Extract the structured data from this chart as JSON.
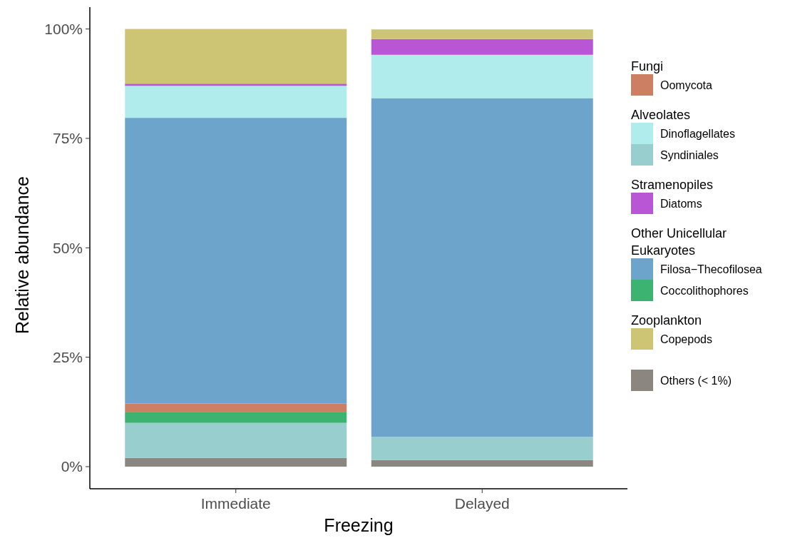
{
  "chart_data": {
    "type": "bar",
    "stacked": true,
    "xlabel": "Freezing",
    "ylabel": "Relative abundance",
    "categories": [
      "Immediate",
      "Delayed"
    ],
    "ylim": [
      0,
      100
    ],
    "yticks": [
      {
        "value": 0,
        "label": "0%"
      },
      {
        "value": 25,
        "label": "25%"
      },
      {
        "value": 50,
        "label": "50%"
      },
      {
        "value": 75,
        "label": "75%"
      },
      {
        "value": 100,
        "label": "100%"
      }
    ],
    "legend": "right",
    "grid": false,
    "annotations": [
      "Fungi",
      "Alveolates",
      "Stramenopiles",
      "Other Unicellular Eukaryotes",
      "Zooplankton"
    ],
    "series": [
      {
        "name": "Others (< 1%)",
        "color": "#8c8680",
        "values": [
          2,
          1.5
        ]
      },
      {
        "name": "Syndiniales",
        "color": "#98cece",
        "values": [
          8,
          5.3
        ]
      },
      {
        "name": "Coccolithophores",
        "color": "#3db371",
        "values": [
          2.4,
          null
        ]
      },
      {
        "name": "Oomycota",
        "color": "#cc7f63",
        "values": [
          2,
          0
        ]
      },
      {
        "name": "Filosa−Thecofilosea",
        "color": "#6ca4cc",
        "values": [
          65.3,
          77.4
        ]
      },
      {
        "name": "Dinoflagellates",
        "color": "#b0ecec",
        "values": [
          7.3,
          9.9
        ]
      },
      {
        "name": "Diatoms",
        "color": "#b856d6",
        "values": [
          0.5,
          3.6
        ]
      },
      {
        "name": "Copepods",
        "color": "#cdc574",
        "values": [
          12.5,
          2.2
        ]
      }
    ]
  }
}
